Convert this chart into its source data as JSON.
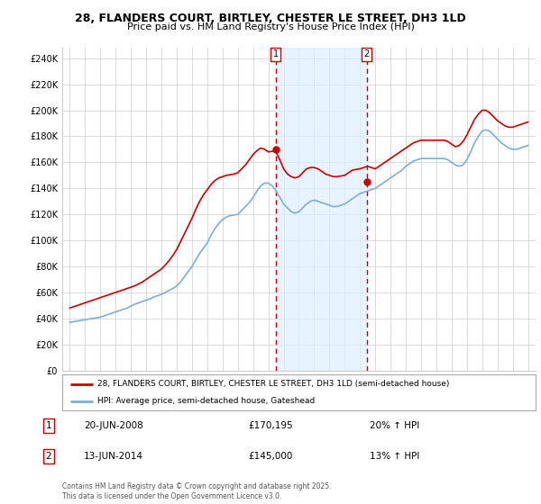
{
  "title": "28, FLANDERS COURT, BIRTLEY, CHESTER LE STREET, DH3 1LD",
  "subtitle": "Price paid vs. HM Land Registry's House Price Index (HPI)",
  "ylabel_ticks": [
    "£0",
    "£20K",
    "£40K",
    "£60K",
    "£80K",
    "£100K",
    "£120K",
    "£140K",
    "£160K",
    "£180K",
    "£200K",
    "£220K",
    "£240K"
  ],
  "ytick_vals": [
    0,
    20000,
    40000,
    60000,
    80000,
    100000,
    120000,
    140000,
    160000,
    180000,
    200000,
    220000,
    240000
  ],
  "ylim": [
    0,
    248000
  ],
  "legend_line1": "28, FLANDERS COURT, BIRTLEY, CHESTER LE STREET, DH3 1LD (semi-detached house)",
  "legend_line2": "HPI: Average price, semi-detached house, Gateshead",
  "sale1_label": "1",
  "sale1_date": "20-JUN-2008",
  "sale1_price": "£170,195",
  "sale1_hpi": "20% ↑ HPI",
  "sale2_label": "2",
  "sale2_date": "13-JUN-2014",
  "sale2_price": "£145,000",
  "sale2_hpi": "13% ↑ HPI",
  "footnote": "Contains HM Land Registry data © Crown copyright and database right 2025.\nThis data is licensed under the Open Government Licence v3.0.",
  "sale1_color": "#cc0000",
  "hpi_color": "#7bafd4",
  "hpi_fill_color": "#ddeeff",
  "grid_color": "#cccccc",
  "bg_color": "#ffffff",
  "vline_color": "#cc0000",
  "sale1_x": 2008.47,
  "sale2_x": 2014.45,
  "hpi_x": [
    1995.0,
    1995.25,
    1995.5,
    1995.75,
    1996.0,
    1996.25,
    1996.5,
    1996.75,
    1997.0,
    1997.25,
    1997.5,
    1997.75,
    1998.0,
    1998.25,
    1998.5,
    1998.75,
    1999.0,
    1999.25,
    1999.5,
    1999.75,
    2000.0,
    2000.25,
    2000.5,
    2000.75,
    2001.0,
    2001.25,
    2001.5,
    2001.75,
    2002.0,
    2002.25,
    2002.5,
    2002.75,
    2003.0,
    2003.25,
    2003.5,
    2003.75,
    2004.0,
    2004.25,
    2004.5,
    2004.75,
    2005.0,
    2005.25,
    2005.5,
    2005.75,
    2006.0,
    2006.25,
    2006.5,
    2006.75,
    2007.0,
    2007.25,
    2007.5,
    2007.75,
    2008.0,
    2008.25,
    2008.5,
    2008.75,
    2009.0,
    2009.25,
    2009.5,
    2009.75,
    2010.0,
    2010.25,
    2010.5,
    2010.75,
    2011.0,
    2011.25,
    2011.5,
    2011.75,
    2012.0,
    2012.25,
    2012.5,
    2012.75,
    2013.0,
    2013.25,
    2013.5,
    2013.75,
    2014.0,
    2014.25,
    2014.5,
    2014.75,
    2015.0,
    2015.25,
    2015.5,
    2015.75,
    2016.0,
    2016.25,
    2016.5,
    2016.75,
    2017.0,
    2017.25,
    2017.5,
    2017.75,
    2018.0,
    2018.25,
    2018.5,
    2018.75,
    2019.0,
    2019.25,
    2019.5,
    2019.75,
    2020.0,
    2020.25,
    2020.5,
    2020.75,
    2021.0,
    2021.25,
    2021.5,
    2021.75,
    2022.0,
    2022.25,
    2022.5,
    2022.75,
    2023.0,
    2023.25,
    2023.5,
    2023.75,
    2024.0,
    2024.25,
    2024.5,
    2024.75,
    2025.0
  ],
  "hpi_y": [
    37000,
    37500,
    38000,
    38500,
    39000,
    39500,
    40000,
    40500,
    41000,
    42000,
    43000,
    44000,
    45000,
    46000,
    47000,
    48000,
    49500,
    51000,
    52000,
    53000,
    54000,
    55000,
    56500,
    57500,
    58500,
    60000,
    61500,
    63000,
    65000,
    68000,
    72000,
    76000,
    80000,
    85000,
    90000,
    94000,
    98000,
    104000,
    109000,
    113000,
    116000,
    118000,
    119000,
    119500,
    120000,
    123000,
    126000,
    129000,
    133000,
    138000,
    142000,
    144000,
    144000,
    142000,
    138000,
    133000,
    128000,
    125000,
    122000,
    121000,
    122000,
    125000,
    128000,
    130000,
    131000,
    130000,
    129000,
    128000,
    127000,
    126000,
    126000,
    127000,
    128000,
    130000,
    132000,
    134000,
    136000,
    137000,
    138000,
    139000,
    140000,
    142000,
    144000,
    146000,
    148000,
    150000,
    152000,
    154000,
    157000,
    159000,
    161000,
    162000,
    163000,
    163000,
    163000,
    163000,
    163000,
    163000,
    163000,
    162000,
    160000,
    158000,
    157000,
    158000,
    162000,
    168000,
    175000,
    180000,
    184000,
    185000,
    184000,
    181000,
    178000,
    175000,
    173000,
    171000,
    170000,
    170000,
    171000,
    172000,
    173000
  ],
  "price_x": [
    1995.0,
    1995.25,
    1995.5,
    1995.75,
    1996.0,
    1996.25,
    1996.5,
    1996.75,
    1997.0,
    1997.25,
    1997.5,
    1997.75,
    1998.0,
    1998.25,
    1998.5,
    1998.75,
    1999.0,
    1999.25,
    1999.5,
    1999.75,
    2000.0,
    2000.25,
    2000.5,
    2000.75,
    2001.0,
    2001.25,
    2001.5,
    2001.75,
    2002.0,
    2002.25,
    2002.5,
    2002.75,
    2003.0,
    2003.25,
    2003.5,
    2003.75,
    2004.0,
    2004.25,
    2004.5,
    2004.75,
    2005.0,
    2005.25,
    2005.5,
    2005.75,
    2006.0,
    2006.25,
    2006.5,
    2006.75,
    2007.0,
    2007.25,
    2007.5,
    2007.75,
    2008.0,
    2008.25,
    2008.5,
    2008.75,
    2009.0,
    2009.25,
    2009.5,
    2009.75,
    2010.0,
    2010.25,
    2010.5,
    2010.75,
    2011.0,
    2011.25,
    2011.5,
    2011.75,
    2012.0,
    2012.25,
    2012.5,
    2012.75,
    2013.0,
    2013.25,
    2013.5,
    2013.75,
    2014.0,
    2014.25,
    2014.5,
    2014.75,
    2015.0,
    2015.25,
    2015.5,
    2015.75,
    2016.0,
    2016.25,
    2016.5,
    2016.75,
    2017.0,
    2017.25,
    2017.5,
    2017.75,
    2018.0,
    2018.25,
    2018.5,
    2018.75,
    2019.0,
    2019.25,
    2019.5,
    2019.75,
    2020.0,
    2020.25,
    2020.5,
    2020.75,
    2021.0,
    2021.25,
    2021.5,
    2021.75,
    2022.0,
    2022.25,
    2022.5,
    2022.75,
    2023.0,
    2023.25,
    2023.5,
    2023.75,
    2024.0,
    2024.25,
    2024.5,
    2024.75,
    2025.0
  ],
  "price_y": [
    48000,
    49000,
    50000,
    51000,
    52000,
    53000,
    54000,
    55000,
    56000,
    57000,
    58000,
    59000,
    60000,
    61000,
    62000,
    63000,
    64000,
    65000,
    66500,
    68000,
    70000,
    72000,
    74000,
    76000,
    78000,
    81000,
    84500,
    88500,
    93000,
    99000,
    105000,
    111000,
    117000,
    124000,
    130000,
    135000,
    139000,
    143000,
    146000,
    148000,
    149000,
    150000,
    150500,
    151000,
    152000,
    155000,
    158000,
    162000,
    166000,
    169000,
    171000,
    170000,
    168000,
    168500,
    168000,
    162000,
    155000,
    151000,
    149000,
    148000,
    149000,
    152000,
    155000,
    156000,
    156000,
    155000,
    153000,
    151000,
    150000,
    149000,
    149000,
    149500,
    150000,
    152000,
    154000,
    154500,
    155000,
    156000,
    157000,
    156000,
    155000,
    157000,
    159000,
    161000,
    163000,
    165000,
    167000,
    169000,
    171000,
    173000,
    175000,
    176000,
    177000,
    177000,
    177000,
    177000,
    177000,
    177000,
    177000,
    176000,
    174000,
    172000,
    173000,
    176000,
    181000,
    187000,
    193000,
    197000,
    200000,
    200000,
    198000,
    195000,
    192000,
    190000,
    188000,
    187000,
    187000,
    188000,
    189000,
    190000,
    191000
  ],
  "xlim_min": 1994.5,
  "xlim_max": 2025.5,
  "shade_x1": 2008.47,
  "shade_x2": 2014.45
}
